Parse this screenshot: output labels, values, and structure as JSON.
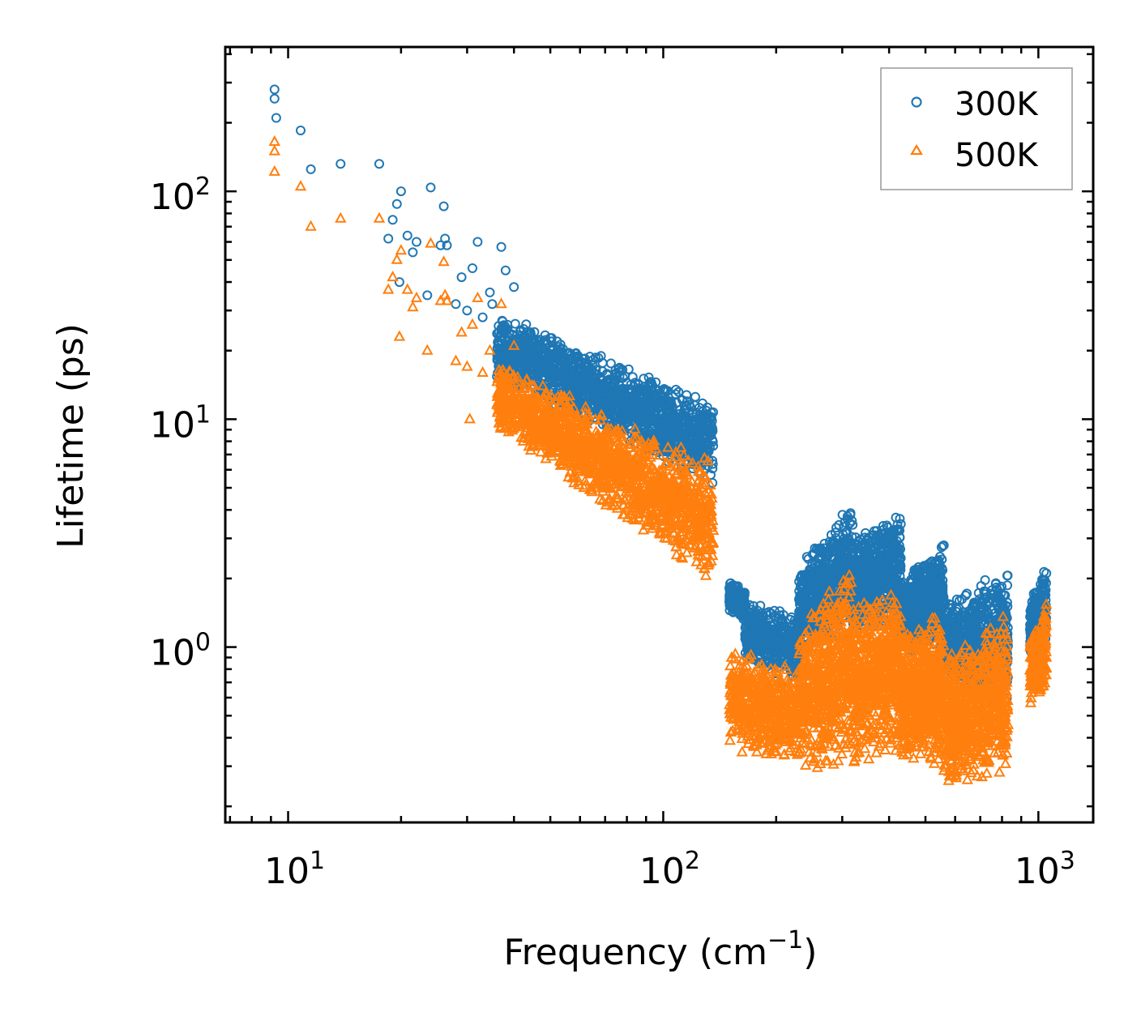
{
  "chart_data": {
    "type": "scatter",
    "xscale": "log",
    "yscale": "log",
    "xlabel": "Frequency (cm",
    "xlabel_superscript": "−1",
    "xlabel_suffix": ")",
    "ylabel": "Lifetime (ps)",
    "xlim": [
      6.8,
      1400
    ],
    "ylim": [
      0.17,
      430
    ],
    "x_major_ticks": [
      10,
      100,
      1000
    ],
    "y_major_ticks": [
      1,
      10,
      100
    ],
    "tick_base": "10",
    "x_tick_exponents": [
      "1",
      "2",
      "3"
    ],
    "y_tick_exponents": [
      "0",
      "1",
      "2"
    ],
    "legend": {
      "position": "top-right"
    },
    "series": [
      {
        "name": "300K",
        "color": "#1f77b4",
        "marker": "circle",
        "anchor_points": [
          [
            9.2,
            280
          ],
          [
            9.2,
            255
          ],
          [
            9.3,
            210
          ],
          [
            10.8,
            185
          ],
          [
            11.5,
            125
          ],
          [
            13.8,
            132
          ],
          [
            17.5,
            132
          ],
          [
            18.5,
            62
          ],
          [
            19,
            75
          ],
          [
            19.5,
            88
          ],
          [
            19.8,
            40
          ],
          [
            20,
            100
          ],
          [
            20.8,
            64
          ],
          [
            21.5,
            54
          ],
          [
            22,
            60
          ],
          [
            23.5,
            35
          ],
          [
            24,
            104
          ],
          [
            25.5,
            58
          ],
          [
            26,
            86
          ],
          [
            26.2,
            62
          ],
          [
            26.5,
            58
          ],
          [
            28,
            32
          ],
          [
            29,
            42
          ],
          [
            30,
            30
          ],
          [
            31,
            46
          ],
          [
            32,
            60
          ],
          [
            33,
            28
          ],
          [
            34.5,
            36
          ],
          [
            35,
            32
          ],
          [
            37,
            57
          ],
          [
            38,
            45
          ],
          [
            40,
            38
          ]
        ],
        "clusters": [
          {
            "x_range": [
              36,
              136
            ],
            "y_lo": [
              15,
              5.0
            ],
            "y_hi": [
              30,
              12
            ],
            "density": 1500
          },
          {
            "x_range": [
              150,
              165
            ],
            "y_lo": [
              1.4,
              1.3
            ],
            "y_hi": [
              2.0,
              1.8
            ],
            "density": 200
          },
          {
            "x_range": [
              165,
              230
            ],
            "y_lo": [
              0.85,
              0.7
            ],
            "y_hi": [
              1.6,
              1.4
            ],
            "density": 400
          },
          {
            "x_range": [
              230,
              320
            ],
            "y_lo": [
              0.9,
              1.2
            ],
            "y_hi": [
              2.4,
              4.4
            ],
            "density": 600
          },
          {
            "x_range": [
              320,
              430
            ],
            "y_lo": [
              1.1,
              1.2
            ],
            "y_hi": [
              3.0,
              4.3
            ],
            "density": 600
          },
          {
            "x_range": [
              430,
              560
            ],
            "y_lo": [
              0.9,
              1.0
            ],
            "y_hi": [
              2.0,
              3.1
            ],
            "density": 600
          },
          {
            "x_range": [
              560,
              830
            ],
            "y_lo": [
              0.65,
              0.55
            ],
            "y_hi": [
              1.6,
              2.3
            ],
            "density": 700
          },
          {
            "x_range": [
              950,
              1050
            ],
            "y_lo": [
              0.9,
              1.0
            ],
            "y_hi": [
              1.6,
              2.3
            ],
            "density": 250
          }
        ]
      },
      {
        "name": "500K",
        "color": "#ff7f0e",
        "marker": "triangle",
        "anchor_points": [
          [
            9.2,
            165
          ],
          [
            9.2,
            150
          ],
          [
            9.2,
            122
          ],
          [
            10.8,
            105
          ],
          [
            11.5,
            70
          ],
          [
            13.8,
            76
          ],
          [
            17.5,
            76
          ],
          [
            18.5,
            37
          ],
          [
            19,
            42
          ],
          [
            19.5,
            50
          ],
          [
            19.8,
            23
          ],
          [
            20,
            55
          ],
          [
            20.8,
            37
          ],
          [
            21.5,
            31
          ],
          [
            22,
            34
          ],
          [
            23.5,
            20
          ],
          [
            24,
            59
          ],
          [
            25.5,
            33
          ],
          [
            26,
            49
          ],
          [
            26.2,
            35
          ],
          [
            26.5,
            33
          ],
          [
            28,
            18
          ],
          [
            29,
            24
          ],
          [
            30,
            17
          ],
          [
            31,
            26
          ],
          [
            32,
            34
          ],
          [
            33,
            16
          ],
          [
            30.5,
            10
          ],
          [
            34.5,
            20
          ],
          [
            37,
            32
          ],
          [
            40,
            21
          ]
        ],
        "clusters": [
          {
            "x_range": [
              36,
              136
            ],
            "y_lo": [
              9,
              1.8
            ],
            "y_hi": [
              18,
              6.5
            ],
            "density": 1500
          },
          {
            "x_range": [
              150,
              230
            ],
            "y_lo": [
              0.35,
              0.3
            ],
            "y_hi": [
              1.0,
              0.85
            ],
            "density": 500
          },
          {
            "x_range": [
              230,
              320
            ],
            "y_lo": [
              0.28,
              0.3
            ],
            "y_hi": [
              1.3,
              2.5
            ],
            "density": 600
          },
          {
            "x_range": [
              320,
              430
            ],
            "y_lo": [
              0.3,
              0.35
            ],
            "y_hi": [
              1.6,
              1.8
            ],
            "density": 600
          },
          {
            "x_range": [
              430,
              560
            ],
            "y_lo": [
              0.3,
              0.3
            ],
            "y_hi": [
              1.2,
              1.5
            ],
            "density": 600
          },
          {
            "x_range": [
              560,
              830
            ],
            "y_lo": [
              0.23,
              0.28
            ],
            "y_hi": [
              0.9,
              1.5
            ],
            "density": 700
          },
          {
            "x_range": [
              950,
              1050
            ],
            "y_lo": [
              0.55,
              0.6
            ],
            "y_hi": [
              1.1,
              1.6
            ],
            "density": 250
          }
        ]
      }
    ]
  }
}
